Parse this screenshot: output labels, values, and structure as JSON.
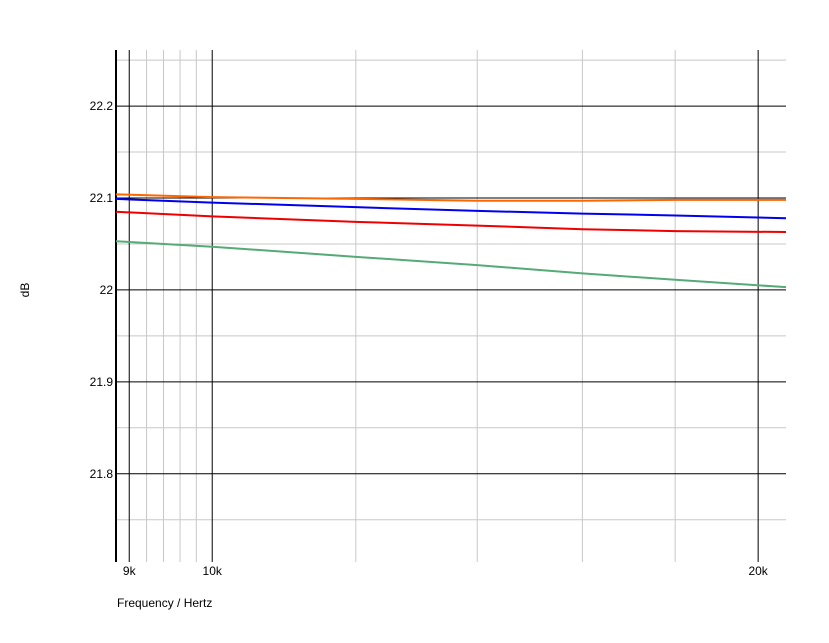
{
  "chart_data": {
    "type": "line",
    "x_label": "Frequency / Hertz",
    "y_label": "dB",
    "x": [
      8850,
      10000,
      12000,
      14000,
      16000,
      18000,
      20720
    ],
    "series": [
      {
        "color": "#ff6600",
        "values": [
          22.104,
          22.101,
          22.099,
          22.097,
          22.097,
          22.098,
          22.098
        ]
      },
      {
        "color": "#0000ee",
        "values": [
          22.099,
          22.095,
          22.09,
          22.086,
          22.083,
          22.081,
          22.078
        ]
      },
      {
        "color": "#ee0000",
        "values": [
          22.085,
          22.08,
          22.074,
          22.07,
          22.066,
          22.064,
          22.063
        ]
      },
      {
        "color": "#55aa77",
        "values": [
          22.053,
          22.047,
          22.036,
          22.027,
          22.018,
          22.011,
          22.003
        ]
      }
    ],
    "xlim": [
      8850,
      20720
    ],
    "x_log": true,
    "xticks": [
      {
        "value": 9000,
        "label": "9k"
      },
      {
        "value": 10000,
        "label": "10k"
      },
      {
        "value": 20000,
        "label": "20k"
      }
    ],
    "xminor": [
      9200,
      9400,
      9600,
      9800,
      12000,
      14000,
      16000,
      18000
    ],
    "ylim": [
      21.704,
      22.261
    ],
    "yticks": [
      21.8,
      21.9,
      22,
      22.1,
      22.2
    ],
    "yminor": [
      21.75,
      21.85,
      21.95,
      22.05,
      22.15,
      22.25
    ],
    "grid": true
  }
}
